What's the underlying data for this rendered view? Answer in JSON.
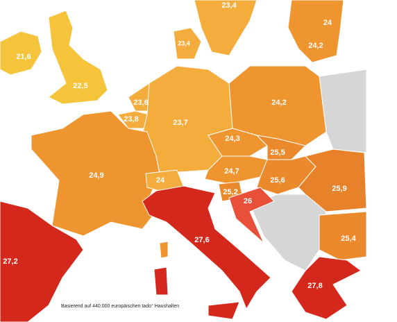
{
  "regions": [
    {
      "label": "23,4"
    },
    {
      "label": "24"
    },
    {
      "label": "24,2"
    },
    {
      "label": "23,4"
    },
    {
      "label": "21,6"
    },
    {
      "label": "22,5"
    },
    {
      "label": "23,6"
    },
    {
      "label": "23,8"
    },
    {
      "label": "23,7"
    },
    {
      "label": "24,2"
    },
    {
      "label": "24,3"
    },
    {
      "label": "25,5"
    },
    {
      "label": "24,9"
    },
    {
      "label": "24"
    },
    {
      "label": "24,7"
    },
    {
      "label": "25,6"
    },
    {
      "label": "25,9"
    },
    {
      "label": "25,2"
    },
    {
      "label": "26"
    },
    {
      "label": "25,4"
    },
    {
      "label": "27,6"
    },
    {
      "label": "27,2"
    },
    {
      "label": "27,8"
    }
  ],
  "footnote": "Basierend auf 440.000 europäischen tado° Haushalten"
}
